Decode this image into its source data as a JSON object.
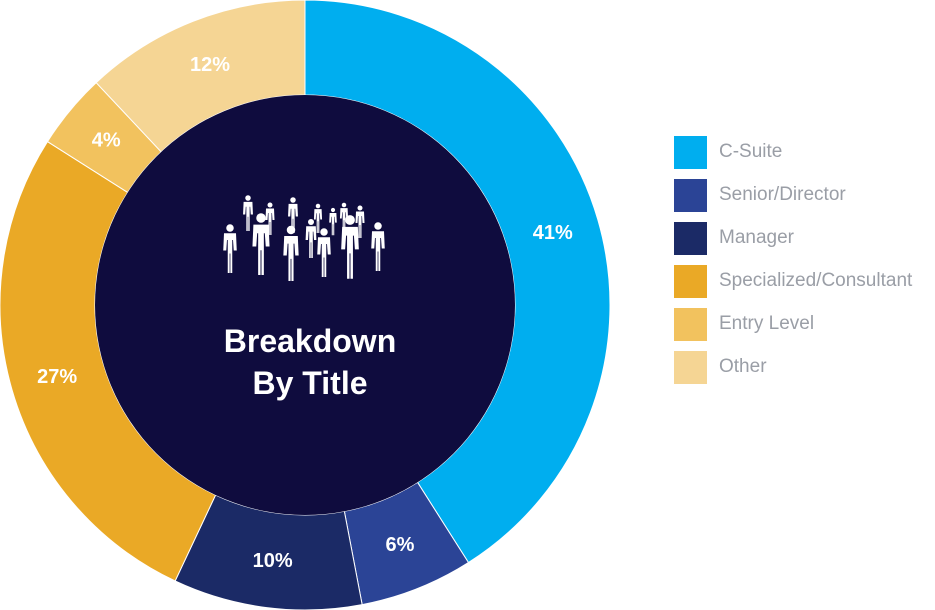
{
  "chart_data": {
    "type": "pie",
    "title": "Breakdown By Title",
    "title_lines": [
      "Breakdown",
      "By Title"
    ],
    "center_icon": "people-group-icon",
    "legend_position": "right",
    "categories": [
      "C-Suite",
      "Senior/Director",
      "Manager",
      "Specialized/Consultant",
      "Entry Level",
      "Other"
    ],
    "values": [
      41,
      6,
      10,
      27,
      4,
      12
    ],
    "labels": [
      "41%",
      "6%",
      "10%",
      "27%",
      "4%",
      "12%"
    ],
    "colors": [
      "#00aeef",
      "#2b4496",
      "#1b2a66",
      "#eaa926",
      "#f2c25e",
      "#f5d594"
    ],
    "center_color": "#0f0c3e"
  }
}
